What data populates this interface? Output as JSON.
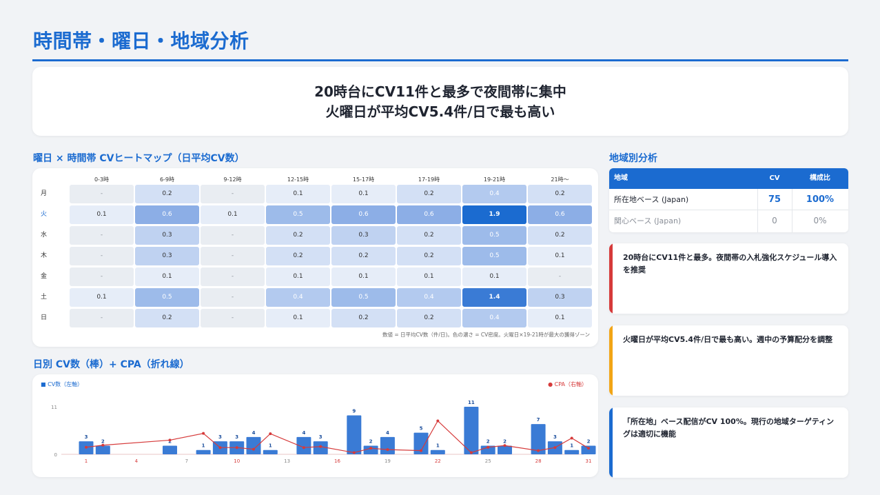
{
  "page": {
    "title": "時間帯・曜日・地域分析",
    "summary_line1": "20時台にCV11件と最多で夜間帯に集中",
    "summary_line2": "火曜日が平均CV5.4件/日で最も高い"
  },
  "heatmap": {
    "title": "曜日 × 時間帯 CVヒートマップ（日平均CV数）",
    "columns": [
      "0-3時",
      "6-9時",
      "9-12時",
      "12-15時",
      "15-17時",
      "17-19時",
      "19-21時",
      "21時〜"
    ],
    "rows": [
      {
        "day": "月",
        "values": [
          "-",
          "0.2",
          "-",
          "0.1",
          "0.1",
          "0.2",
          "0.4",
          "0.2"
        ]
      },
      {
        "day": "火",
        "values": [
          "0.1",
          "0.6",
          "0.1",
          "0.5",
          "0.6",
          "0.6",
          "1.9",
          "0.6"
        ]
      },
      {
        "day": "水",
        "values": [
          "-",
          "0.3",
          "-",
          "0.2",
          "0.3",
          "0.2",
          "0.5",
          "0.2"
        ]
      },
      {
        "day": "木",
        "values": [
          "-",
          "0.3",
          "-",
          "0.2",
          "0.2",
          "0.2",
          "0.5",
          "0.1"
        ]
      },
      {
        "day": "金",
        "values": [
          "-",
          "0.1",
          "-",
          "0.1",
          "0.1",
          "0.1",
          "0.1",
          "-"
        ]
      },
      {
        "day": "土",
        "values": [
          "0.1",
          "0.5",
          "-",
          "0.4",
          "0.5",
          "0.4",
          "1.4",
          "0.3"
        ]
      },
      {
        "day": "日",
        "values": [
          "-",
          "0.2",
          "-",
          "0.1",
          "0.2",
          "0.2",
          "0.4",
          "0.1"
        ]
      }
    ],
    "highlight_day": "火",
    "note": "数値 = 日平均CV数（件/日)。色の濃さ = CV密度。火曜日×19-21時が最大の獲得ゾーン"
  },
  "daily_chart": {
    "title": "日別 CV数（棒）+ CPA（折れ線）",
    "legend_cv": "■ CV数（左軸）",
    "legend_cpa": "● CPA（右軸）",
    "colors": {
      "bar": "#3a7bd5",
      "line": "#d63a3a"
    }
  },
  "chart_data": {
    "type": "bar",
    "x": [
      1,
      2,
      3,
      4,
      5,
      6,
      7,
      8,
      9,
      10,
      11,
      12,
      13,
      14,
      15,
      16,
      17,
      18,
      19,
      20,
      21,
      22,
      23,
      24,
      25,
      26,
      27,
      28,
      29,
      30,
      31
    ],
    "x_tick_labels": [
      "1",
      "4",
      "7",
      "10",
      "13",
      "16",
      "19",
      "22",
      "25",
      "28",
      "31"
    ],
    "y_ticks": [
      "0",
      "11"
    ],
    "ylim": [
      0,
      11
    ],
    "series": [
      {
        "name": "CV数（左軸）",
        "type": "bar",
        "values": [
          3,
          2,
          0,
          0,
          0,
          2,
          0,
          1,
          3,
          3,
          4,
          1,
          0,
          4,
          3,
          0,
          9,
          2,
          4,
          0,
          5,
          1,
          0,
          11,
          2,
          2,
          0,
          7,
          3,
          1,
          2
        ]
      },
      {
        "name": "CPA（右軸）",
        "type": "line",
        "relative_values": [
          0.21,
          0.27,
          null,
          null,
          null,
          0.42,
          null,
          0.62,
          0.2,
          0.2,
          0.15,
          0.61,
          null,
          0.2,
          0.23,
          null,
          0.05,
          0.18,
          0.14,
          null,
          0.11,
          0.99,
          null,
          0.05,
          0.21,
          0.26,
          null,
          0.11,
          0.2,
          0.48,
          0.18
        ]
      }
    ],
    "bar_labels_visible": true,
    "grid": false
  },
  "region": {
    "title": "地域別分析",
    "headers": {
      "region": "地域",
      "cv": "CV",
      "ratio": "構成比"
    },
    "rows": [
      {
        "region": "所在地ベース (Japan)",
        "cv": "75",
        "ratio": "100%"
      },
      {
        "region": "関心ベース (Japan)",
        "cv": "0",
        "ratio": "0%"
      }
    ]
  },
  "insights": [
    {
      "text": "20時台にCV11件と最多。夜間帯の入札強化スケジュール導入を推奨",
      "color": "#d63a3a"
    },
    {
      "text": "火曜日が平均CV5.4件/日で最も高い。週中の予算配分を調整",
      "color": "#f2a516"
    },
    {
      "text": "「所在地」ベース配信がCV 100%。現行の地域ターゲティングは適切に機能",
      "color": "#1b6bd0"
    }
  ]
}
